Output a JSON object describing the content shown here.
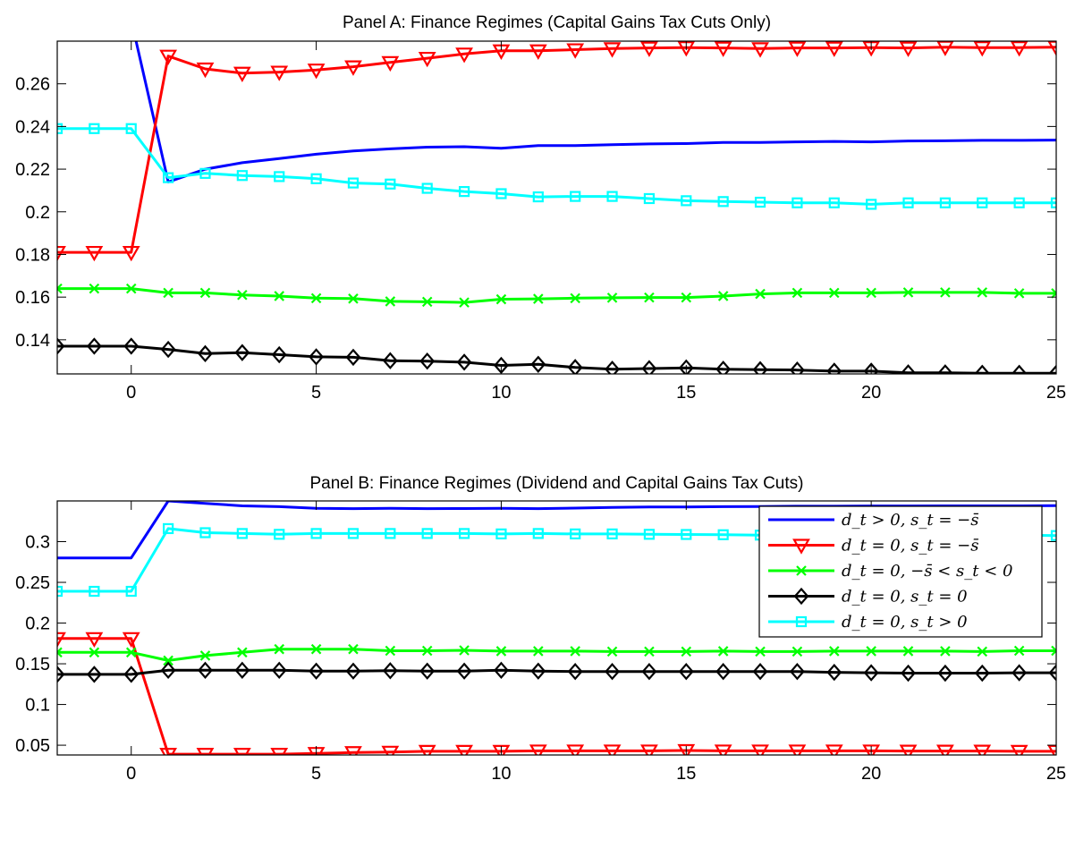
{
  "chart_data": [
    {
      "type": "line",
      "title": "Panel A:  Finance Regimes (Capital Gains Tax Cuts Only)",
      "xlabel": "",
      "ylabel": "",
      "xlim": [
        -2,
        25
      ],
      "ylim": [
        0.124,
        0.28
      ],
      "xticks": [
        0,
        5,
        10,
        15,
        20,
        25
      ],
      "yticks": [
        0.14,
        0.16,
        0.18,
        0.2,
        0.22,
        0.24,
        0.26
      ],
      "ytick_labels": [
        "0.14",
        "0.16",
        "0.18",
        "0.2",
        "0.22",
        "0.24",
        "0.26"
      ],
      "grid": false,
      "x": [
        -2,
        -1,
        0,
        1,
        2,
        3,
        4,
        5,
        6,
        7,
        8,
        9,
        10,
        11,
        12,
        13,
        14,
        15,
        16,
        17,
        18,
        19,
        20,
        21,
        22,
        23,
        24,
        25
      ],
      "series": [
        {
          "key": "s1",
          "color": "#0000ff",
          "marker": "none",
          "values": [
            0.29,
            0.29,
            0.29,
            0.214,
            0.22,
            0.223,
            0.225,
            0.227,
            0.2285,
            0.2295,
            0.2303,
            0.2305,
            0.2298,
            0.231,
            0.231,
            0.2315,
            0.2318,
            0.232,
            0.2325,
            0.2325,
            0.2328,
            0.233,
            0.2328,
            0.2332,
            0.2333,
            0.2335,
            0.2335,
            0.2336
          ]
        },
        {
          "key": "s2",
          "color": "#ff0000",
          "marker": "triangle-down",
          "values": [
            0.181,
            0.181,
            0.181,
            0.273,
            0.267,
            0.265,
            0.2655,
            0.2665,
            0.268,
            0.27,
            0.272,
            0.274,
            0.2755,
            0.2755,
            0.276,
            0.2765,
            0.2768,
            0.277,
            0.2768,
            0.2765,
            0.2768,
            0.2768,
            0.277,
            0.2768,
            0.2772,
            0.277,
            0.277,
            0.2772
          ]
        },
        {
          "key": "s3",
          "color": "#00ff00",
          "marker": "x",
          "values": [
            0.164,
            0.164,
            0.164,
            0.162,
            0.162,
            0.161,
            0.1605,
            0.1595,
            0.1593,
            0.158,
            0.1578,
            0.1575,
            0.159,
            0.1592,
            0.1595,
            0.1597,
            0.1598,
            0.1598,
            0.1605,
            0.1615,
            0.162,
            0.162,
            0.162,
            0.1622,
            0.1622,
            0.1622,
            0.1618,
            0.1618
          ]
        },
        {
          "key": "s4",
          "color": "#000000",
          "marker": "diamond",
          "values": [
            0.137,
            0.137,
            0.137,
            0.1355,
            0.1335,
            0.134,
            0.133,
            0.132,
            0.1318,
            0.1302,
            0.13,
            0.1295,
            0.128,
            0.1285,
            0.127,
            0.1262,
            0.1265,
            0.1268,
            0.1262,
            0.126,
            0.1258,
            0.1253,
            0.1253,
            0.1245,
            0.1245,
            0.1243,
            0.1243,
            0.1243
          ]
        },
        {
          "key": "s5",
          "color": "#00ffff",
          "marker": "square",
          "values": [
            0.239,
            0.239,
            0.239,
            0.216,
            0.218,
            0.217,
            0.2165,
            0.2155,
            0.2135,
            0.213,
            0.211,
            0.2095,
            0.2085,
            0.207,
            0.2072,
            0.2072,
            0.2062,
            0.2052,
            0.2048,
            0.2045,
            0.2042,
            0.2042,
            0.2035,
            0.2042,
            0.2042,
            0.2042,
            0.2042,
            0.2042
          ]
        }
      ]
    },
    {
      "type": "line",
      "title": "Panel B: Finance Regimes (Dividend and Capital Gains Tax Cuts)",
      "xlabel": "",
      "ylabel": "",
      "xlim": [
        -2,
        25
      ],
      "ylim": [
        0.038,
        0.35
      ],
      "xticks": [
        0,
        5,
        10,
        15,
        20,
        25
      ],
      "yticks": [
        0.05,
        0.1,
        0.15,
        0.2,
        0.25,
        0.3
      ],
      "ytick_labels": [
        "0.05",
        "0.1",
        "0.15",
        "0.2",
        "0.25",
        "0.3"
      ],
      "grid": false,
      "legend_position": "top-right",
      "x": [
        -2,
        -1,
        0,
        1,
        2,
        3,
        4,
        5,
        6,
        7,
        8,
        9,
        10,
        11,
        12,
        13,
        14,
        15,
        16,
        17,
        18,
        19,
        20,
        21,
        22,
        23,
        24,
        25
      ],
      "series": [
        {
          "key": "s1",
          "color": "#0000ff",
          "marker": "none",
          "values": [
            0.28,
            0.28,
            0.28,
            0.35,
            0.347,
            0.344,
            0.343,
            0.341,
            0.3405,
            0.341,
            0.3405,
            0.3407,
            0.341,
            0.3405,
            0.3412,
            0.342,
            0.3425,
            0.3425,
            0.343,
            0.3432,
            0.3435,
            0.3435,
            0.3438,
            0.3438,
            0.344,
            0.344,
            0.344,
            0.3442
          ]
        },
        {
          "key": "s2",
          "color": "#ff0000",
          "marker": "triangle-down",
          "values": [
            0.181,
            0.181,
            0.181,
            0.039,
            0.039,
            0.039,
            0.039,
            0.04,
            0.041,
            0.0415,
            0.0425,
            0.0425,
            0.0425,
            0.043,
            0.043,
            0.043,
            0.043,
            0.0435,
            0.043,
            0.043,
            0.043,
            0.043,
            0.043,
            0.0428,
            0.0428,
            0.0428,
            0.0425,
            0.0425
          ]
        },
        {
          "key": "s3",
          "color": "#00ff00",
          "marker": "x",
          "values": [
            0.164,
            0.164,
            0.164,
            0.154,
            0.16,
            0.164,
            0.168,
            0.168,
            0.168,
            0.166,
            0.166,
            0.1665,
            0.1655,
            0.1655,
            0.1655,
            0.165,
            0.165,
            0.165,
            0.1655,
            0.165,
            0.165,
            0.1655,
            0.1655,
            0.1655,
            0.1655,
            0.165,
            0.166,
            0.166
          ]
        },
        {
          "key": "s4",
          "color": "#000000",
          "marker": "diamond",
          "values": [
            0.137,
            0.137,
            0.137,
            0.142,
            0.142,
            0.142,
            0.142,
            0.141,
            0.141,
            0.1415,
            0.141,
            0.141,
            0.142,
            0.141,
            0.1405,
            0.1405,
            0.1405,
            0.1405,
            0.1405,
            0.1405,
            0.1405,
            0.1395,
            0.139,
            0.1385,
            0.1385,
            0.1385,
            0.139,
            0.139
          ]
        },
        {
          "key": "s5",
          "color": "#00ffff",
          "marker": "square",
          "values": [
            0.239,
            0.239,
            0.239,
            0.316,
            0.311,
            0.31,
            0.309,
            0.31,
            0.31,
            0.31,
            0.31,
            0.31,
            0.3095,
            0.31,
            0.3095,
            0.3095,
            0.309,
            0.3088,
            0.3085,
            0.308,
            0.308,
            0.308,
            0.308,
            0.308,
            0.308,
            0.308,
            0.308,
            0.3075
          ]
        }
      ]
    }
  ],
  "legend": [
    {
      "key": "s1",
      "label": "d_t > 0, s_t = −s̄",
      "color": "#0000ff",
      "marker": "none"
    },
    {
      "key": "s2",
      "label": "d_t = 0, s_t = −s̄",
      "color": "#ff0000",
      "marker": "triangle-down"
    },
    {
      "key": "s3",
      "label": "d_t = 0, −s̄ < s_t < 0",
      "color": "#00ff00",
      "marker": "x"
    },
    {
      "key": "s4",
      "label": "d_t = 0, s_t = 0",
      "color": "#000000",
      "marker": "diamond"
    },
    {
      "key": "s5",
      "label": "d_t = 0, s_t > 0",
      "color": "#00ffff",
      "marker": "square"
    }
  ]
}
